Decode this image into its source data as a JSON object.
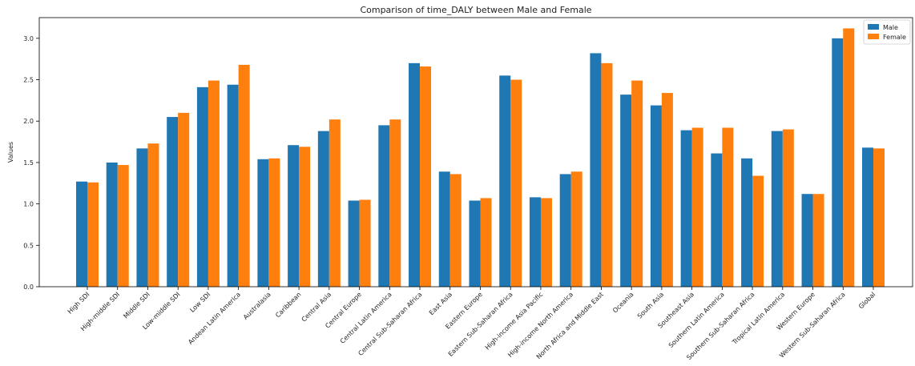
{
  "chart_data": {
    "type": "bar",
    "title": "Comparison of time_DALY between Male and Female",
    "xlabel": "",
    "ylabel": "Values",
    "ylim": [
      0,
      3.25
    ],
    "yticks": [
      "0.0",
      "0.5",
      "1.0",
      "1.5",
      "2.0",
      "2.5",
      "3.0"
    ],
    "grid": false,
    "legend_position": "top-right",
    "categories": [
      "High SDI",
      "High-middle SDI",
      "Middle SDI",
      "Low-middle SDI",
      "Low SDI",
      "Andean Latin America",
      "Australasia",
      "Caribbean",
      "Central Asia",
      "Central Europe",
      "Central Latin America",
      "Central Sub-Saharan Africa",
      "East Asia",
      "Eastern Europe",
      "Eastern Sub-Saharan Africa",
      "High-income Asia Pacific",
      "High-income North America",
      "North Africa and Middle East",
      "Oceania",
      "South Asia",
      "Southeast Asia",
      "Southern Latin America",
      "Southern Sub-Saharan Africa",
      "Tropical Latin America",
      "Western Europe",
      "Western Sub-Saharan Africa",
      "Global"
    ],
    "series": [
      {
        "name": "Male",
        "color": "#1f77b4",
        "values": [
          1.27,
          1.5,
          1.67,
          2.05,
          2.41,
          2.44,
          1.54,
          1.71,
          1.88,
          1.04,
          1.95,
          2.7,
          1.39,
          1.04,
          2.55,
          1.08,
          1.36,
          2.82,
          2.32,
          2.19,
          1.89,
          1.61,
          1.55,
          1.88,
          1.12,
          3.0,
          1.68
        ]
      },
      {
        "name": "Female",
        "color": "#ff7f0e",
        "values": [
          1.26,
          1.47,
          1.73,
          2.1,
          2.49,
          2.68,
          1.55,
          1.69,
          2.02,
          1.05,
          2.02,
          2.66,
          1.36,
          1.07,
          2.5,
          1.07,
          1.39,
          2.7,
          2.49,
          2.34,
          1.92,
          1.92,
          1.34,
          1.9,
          1.12,
          3.12,
          1.67
        ]
      }
    ]
  }
}
